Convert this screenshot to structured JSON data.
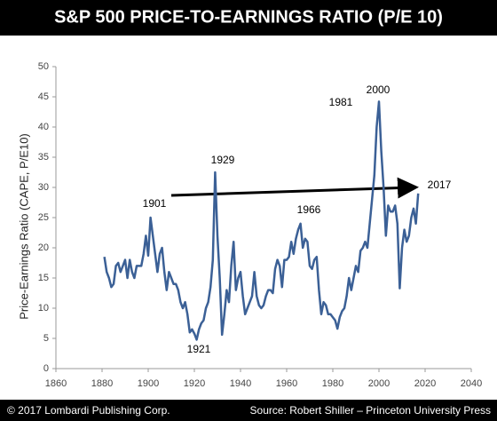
{
  "chart_data": {
    "type": "line",
    "title": "S&P 500 PRICE-TO-EARNINGS RATIO (P/E 10)",
    "y_label": "Price-Earnings Ratio (CAPE, P/E10)",
    "copyright": "© 2017 Lombardi Publishing Corp.",
    "source": "Source: Robert Shiller – Princeton University Press",
    "annotations": [
      "1901",
      "1929",
      "1921",
      "1966",
      "1981",
      "2000",
      "2017"
    ],
    "xlim": [
      1860,
      2040
    ],
    "xticks": [
      1860,
      1880,
      1900,
      1920,
      1940,
      1960,
      1980,
      2000,
      2020,
      2040
    ],
    "ylim": [
      0,
      50
    ],
    "yticks": [
      0,
      5,
      10,
      15,
      20,
      25,
      30,
      35,
      40,
      45,
      50
    ],
    "grid": false,
    "series": [
      {
        "color": "#3b6096",
        "x": [
          1881,
          1882,
          1883,
          1884,
          1885,
          1886,
          1887,
          1888,
          1889,
          1890,
          1891,
          1892,
          1893,
          1894,
          1895,
          1896,
          1897,
          1898,
          1899,
          1900,
          1901,
          1902,
          1903,
          1904,
          1905,
          1906,
          1907,
          1908,
          1909,
          1910,
          1911,
          1912,
          1913,
          1914,
          1915,
          1916,
          1917,
          1918,
          1919,
          1920,
          1921,
          1922,
          1923,
          1924,
          1925,
          1926,
          1927,
          1928,
          1929,
          1930,
          1931,
          1932,
          1933,
          1934,
          1935,
          1936,
          1937,
          1938,
          1939,
          1940,
          1941,
          1942,
          1943,
          1944,
          1945,
          1946,
          1947,
          1948,
          1949,
          1950,
          1951,
          1952,
          1953,
          1954,
          1955,
          1956,
          1957,
          1958,
          1959,
          1960,
          1961,
          1962,
          1963,
          1964,
          1965,
          1966,
          1967,
          1968,
          1969,
          1970,
          1971,
          1972,
          1973,
          1974,
          1975,
          1976,
          1977,
          1978,
          1979,
          1980,
          1981,
          1982,
          1983,
          1984,
          1985,
          1986,
          1987,
          1988,
          1989,
          1990,
          1991,
          1992,
          1993,
          1994,
          1995,
          1996,
          1997,
          1998,
          1999,
          2000,
          2001,
          2002,
          2003,
          2004,
          2005,
          2006,
          2007,
          2008,
          2009,
          2010,
          2011,
          2012,
          2013,
          2014,
          2015,
          2016,
          2017
        ],
        "values": [
          18.5,
          16,
          15,
          13.5,
          14,
          17,
          17.5,
          16,
          17,
          18,
          15,
          18,
          16,
          15,
          17,
          17,
          17,
          19,
          22,
          18.7,
          25,
          22,
          19,
          16,
          19,
          20,
          16,
          13,
          16,
          15,
          14,
          14,
          13,
          11,
          10,
          11,
          9,
          6,
          6.5,
          5.8,
          4.8,
          6.5,
          7.5,
          8,
          10,
          11,
          13.5,
          18,
          32.5,
          22,
          15,
          5.6,
          9,
          13,
          11,
          17,
          21,
          13,
          15,
          16,
          12,
          9,
          10,
          11,
          12,
          16,
          12,
          10.5,
          10,
          10.5,
          12,
          13,
          13,
          12.5,
          16.5,
          18,
          17,
          13.5,
          18,
          18,
          18.5,
          21,
          19,
          21.5,
          23,
          24,
          20,
          21.5,
          21,
          17,
          16.5,
          18,
          18.5,
          13,
          9,
          11,
          10.5,
          9,
          9,
          8.5,
          8,
          6.6,
          8.5,
          9.5,
          10,
          12,
          15,
          13,
          15,
          17,
          16,
          19.5,
          20,
          21,
          20,
          24,
          28,
          32,
          40,
          44.2,
          36,
          30,
          22,
          27,
          26,
          26,
          27,
          24,
          13.3,
          20,
          23,
          21,
          22,
          25,
          26.5,
          24,
          29
        ]
      }
    ]
  }
}
